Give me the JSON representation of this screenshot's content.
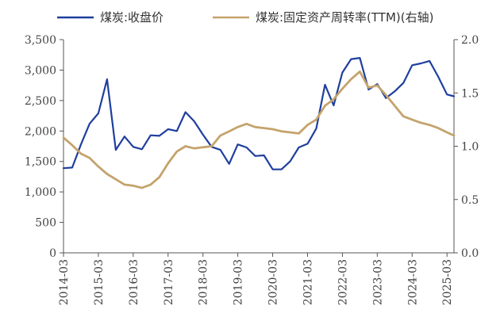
{
  "chart_data": {
    "type": "line",
    "title": "",
    "xlabel": "",
    "ylabel_left": "",
    "ylabel_right": "",
    "grid": false,
    "legend_position": "top",
    "x_categories": [
      "2014-03",
      "2015-03",
      "2016-03",
      "2017-03",
      "2018-03",
      "2019-03",
      "2020-03",
      "2021-03",
      "2022-03",
      "2023-03",
      "2024-03",
      "2025-03"
    ],
    "left_axis": {
      "ylim": [
        0,
        3500
      ],
      "ticks": [
        "0",
        "500",
        "1,000",
        "1,500",
        "2,000",
        "2,500",
        "3,000",
        "3,500"
      ]
    },
    "right_axis": {
      "ylim": [
        0,
        2.0
      ],
      "ticks": [
        "0.0",
        "0.5",
        "1.0",
        "1.5",
        "2.0"
      ]
    },
    "series": [
      {
        "name": "煤炭:收盘价",
        "axis": "left",
        "color": "#1f3f9e",
        "x": [
          2014.0,
          2014.25,
          2014.5,
          2014.75,
          2015.0,
          2015.25,
          2015.5,
          2015.75,
          2016.0,
          2016.25,
          2016.5,
          2016.75,
          2017.0,
          2017.25,
          2017.5,
          2017.75,
          2018.0,
          2018.25,
          2018.5,
          2018.75,
          2019.0,
          2019.25,
          2019.5,
          2019.75,
          2020.0,
          2020.25,
          2020.5,
          2020.75,
          2021.0,
          2021.25,
          2021.5,
          2021.75,
          2022.0,
          2022.25,
          2022.5,
          2022.75,
          2023.0,
          2023.25,
          2023.5,
          2023.75,
          2024.0,
          2024.25,
          2024.5,
          2024.75,
          2025.0,
          2025.2
        ],
        "values": [
          1390,
          1400,
          1780,
          2120,
          2290,
          2850,
          1690,
          1910,
          1740,
          1700,
          1930,
          1920,
          2030,
          2000,
          2310,
          2160,
          1940,
          1740,
          1690,
          1460,
          1780,
          1730,
          1590,
          1600,
          1370,
          1370,
          1500,
          1730,
          1790,
          2040,
          2760,
          2420,
          2960,
          3180,
          3200,
          2680,
          2770,
          2540,
          2650,
          2790,
          3080,
          3110,
          3150,
          2890,
          2600,
          2570
        ]
      },
      {
        "name": "煤炭:固定资产周转率(TTM)(右轴)",
        "axis": "right",
        "color": "#c4a36c",
        "x": [
          2014.0,
          2014.25,
          2014.5,
          2014.75,
          2015.0,
          2015.25,
          2015.5,
          2015.75,
          2016.0,
          2016.25,
          2016.5,
          2016.75,
          2017.0,
          2017.25,
          2017.5,
          2017.75,
          2018.0,
          2018.25,
          2018.5,
          2018.75,
          2019.0,
          2019.25,
          2019.5,
          2019.75,
          2020.0,
          2020.25,
          2020.5,
          2020.75,
          2021.0,
          2021.25,
          2021.5,
          2021.75,
          2022.0,
          2022.25,
          2022.5,
          2022.75,
          2023.0,
          2023.25,
          2023.5,
          2023.75,
          2024.0,
          2024.25,
          2024.5,
          2024.75,
          2025.0,
          2025.2
        ],
        "values": [
          1.08,
          1.01,
          0.93,
          0.89,
          0.81,
          0.74,
          0.69,
          0.64,
          0.63,
          0.61,
          0.64,
          0.71,
          0.84,
          0.95,
          1.0,
          0.98,
          0.99,
          1.0,
          1.1,
          1.14,
          1.18,
          1.21,
          1.18,
          1.17,
          1.16,
          1.14,
          1.13,
          1.12,
          1.2,
          1.25,
          1.38,
          1.44,
          1.54,
          1.63,
          1.7,
          1.55,
          1.57,
          1.48,
          1.38,
          1.28,
          1.25,
          1.22,
          1.2,
          1.17,
          1.13,
          1.1
        ]
      }
    ]
  }
}
